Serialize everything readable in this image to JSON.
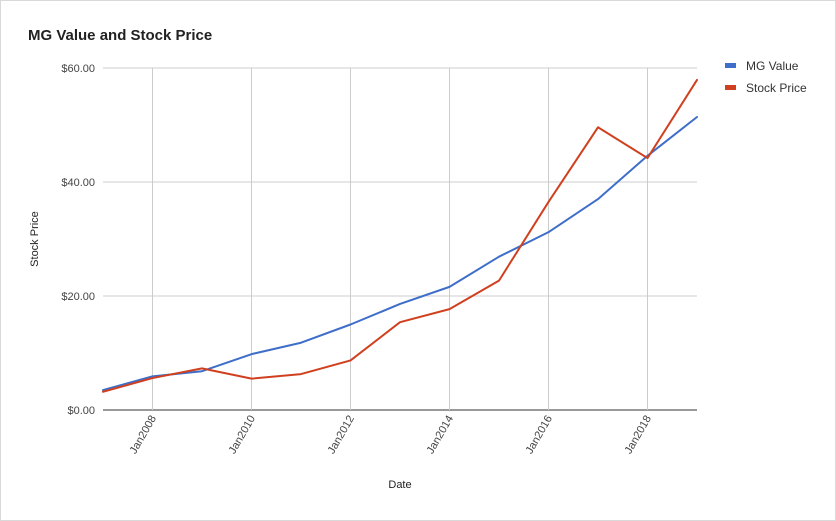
{
  "chart_data": {
    "type": "line",
    "title": "MG Value and Stock Price",
    "xlabel": "Date",
    "ylabel": "Stock Price",
    "x": [
      2007,
      2008,
      2009,
      2010,
      2011,
      2012,
      2013,
      2014,
      2015,
      2016,
      2017,
      2018,
      2019
    ],
    "xlim": [
      2007,
      2019
    ],
    "ylim": [
      0,
      60
    ],
    "y_ticks": [
      0,
      20,
      40,
      60
    ],
    "y_tick_labels": [
      "$0.00",
      "$20.00",
      "$40.00",
      "$60.00"
    ],
    "x_ticks": [
      2008,
      2010,
      2012,
      2014,
      2016,
      2018
    ],
    "x_tick_labels": [
      "Jan2008",
      "Jan2010",
      "Jan2012",
      "Jan2014",
      "Jan2016",
      "Jan2018"
    ],
    "grid": true,
    "legend_position": "right",
    "series": [
      {
        "name": "MG Value",
        "color": "#3e6ec9",
        "values": [
          3.5,
          5.9,
          6.8,
          9.8,
          11.8,
          15.0,
          18.6,
          21.6,
          26.9,
          31.2,
          37.0,
          44.6,
          51.4
        ]
      },
      {
        "name": "Stock Price",
        "color": "#d0401f",
        "values": [
          3.2,
          5.6,
          7.3,
          5.5,
          6.3,
          8.7,
          15.4,
          17.7,
          22.7,
          36.5,
          49.6,
          44.2,
          57.9
        ]
      }
    ]
  }
}
